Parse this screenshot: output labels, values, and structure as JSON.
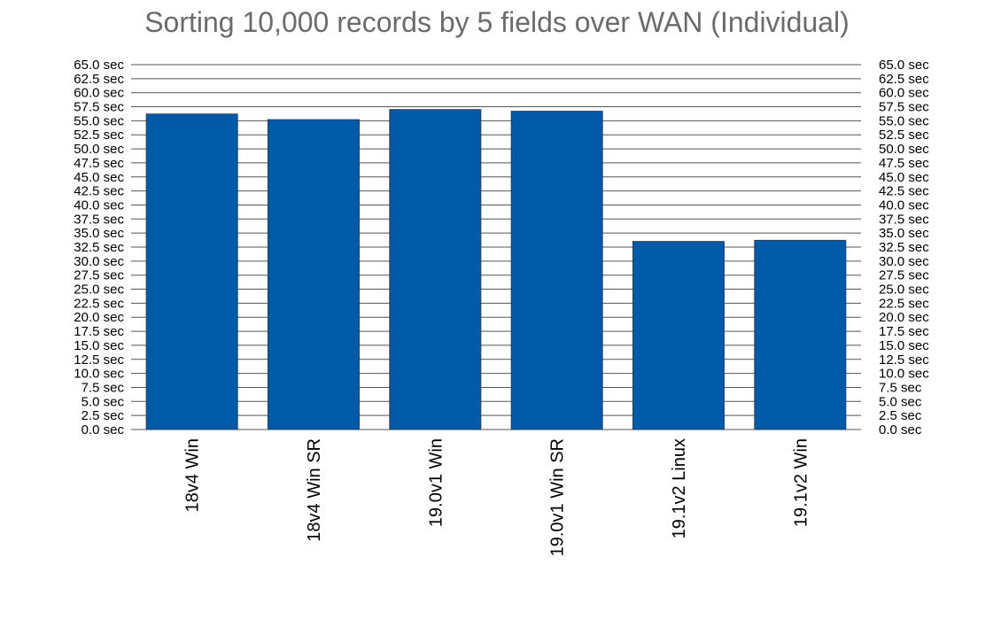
{
  "chart_data": {
    "type": "bar",
    "title": "Sorting 10,000 records by 5 fields over WAN (Individual)",
    "xlabel": "",
    "ylabel": "",
    "ylim": [
      0,
      65
    ],
    "ytick_step": 2.5,
    "ytick_labels": [
      "0.0 sec",
      "2.5 sec",
      "5.0 sec",
      "7.5 sec",
      "10.0 sec",
      "12.5 sec",
      "15.0 sec",
      "17.5 sec",
      "20.0 sec",
      "22.5 sec",
      "25.0 sec",
      "27.5 sec",
      "30.0 sec",
      "32.5 sec",
      "35.0 sec",
      "37.5 sec",
      "40.0 sec",
      "42.5 sec",
      "45.0 sec",
      "47.5 sec",
      "50.0 sec",
      "52.5 sec",
      "55.0 sec",
      "57.5 sec",
      "60.0 sec",
      "62.5 sec",
      "65.0 sec"
    ],
    "y_axis_both_sides": true,
    "grid": true,
    "categories": [
      "18v4 Win",
      "18v4 Win SR",
      "19.0v1 Win",
      "19.0v1 Win SR",
      "19.1v2 Linux",
      "19.1v2 Win"
    ],
    "values": [
      56.2,
      55.2,
      57.0,
      56.7,
      33.5,
      33.7
    ],
    "bar_color": "#005aa8"
  }
}
